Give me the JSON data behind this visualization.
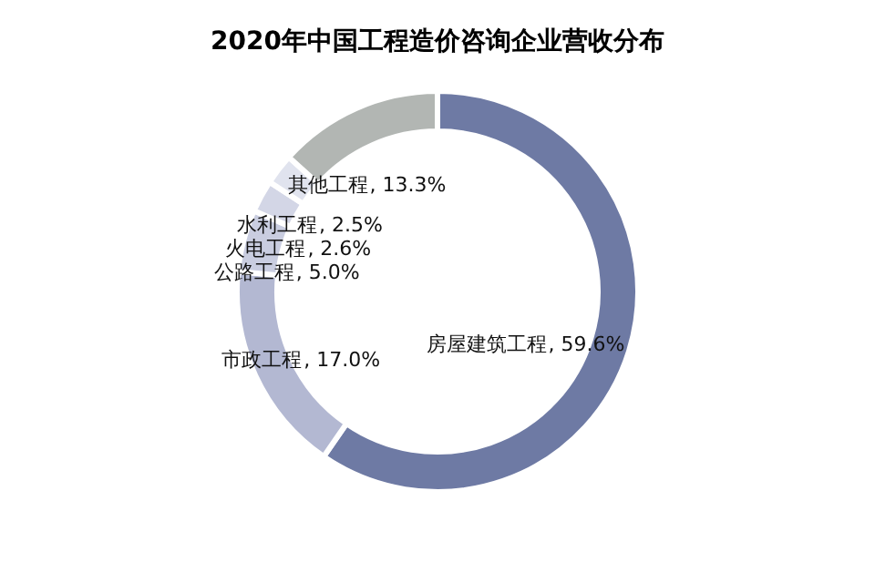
{
  "chart_data": {
    "type": "donut",
    "title": "2020年中国工程造价咨询企业营收分布",
    "categories": [
      "房屋建筑工程",
      "市政工程",
      "公路工程",
      "火电工程",
      "水利工程",
      "其他工程"
    ],
    "values": [
      59.6,
      17.0,
      5.0,
      2.6,
      2.5,
      13.3
    ],
    "colors": [
      "#6e7aa4",
      "#b3b8d2",
      "#c9cde0",
      "#d3d6e6",
      "#e0e3ee",
      "#b2b6b3"
    ],
    "value_labels": [
      ", 59.6%",
      ", 17.0%",
      ", 5.0%",
      ", 2.6%",
      ", 2.5%",
      ", 13.3%"
    ],
    "legend": false
  }
}
